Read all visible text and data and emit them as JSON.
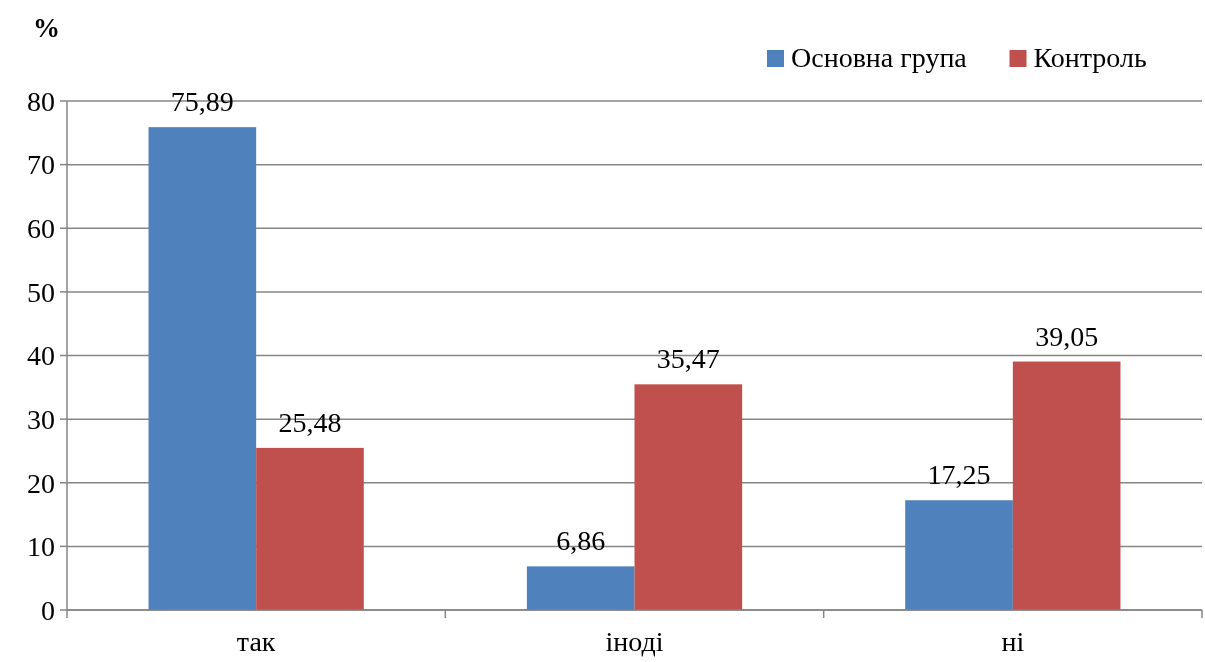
{
  "chart_data": {
    "type": "bar",
    "ylabel": "%",
    "categories": [
      "так",
      "іноді",
      "ні"
    ],
    "series": [
      {
        "name": "Основна група",
        "color": "#4f81bd",
        "values": [
          75.89,
          6.86,
          17.25
        ],
        "value_labels": [
          "75,89",
          "6,86",
          "17,25"
        ]
      },
      {
        "name": "Контроль",
        "color": "#c0504d",
        "values": [
          25.48,
          35.47,
          39.05
        ],
        "value_labels": [
          "25,48",
          "35,47",
          "39,05"
        ]
      }
    ],
    "ylim": [
      0,
      80
    ],
    "yticks": [
      0,
      10,
      20,
      30,
      40,
      50,
      60,
      70,
      80
    ],
    "grid": "y",
    "legend": "top right"
  }
}
